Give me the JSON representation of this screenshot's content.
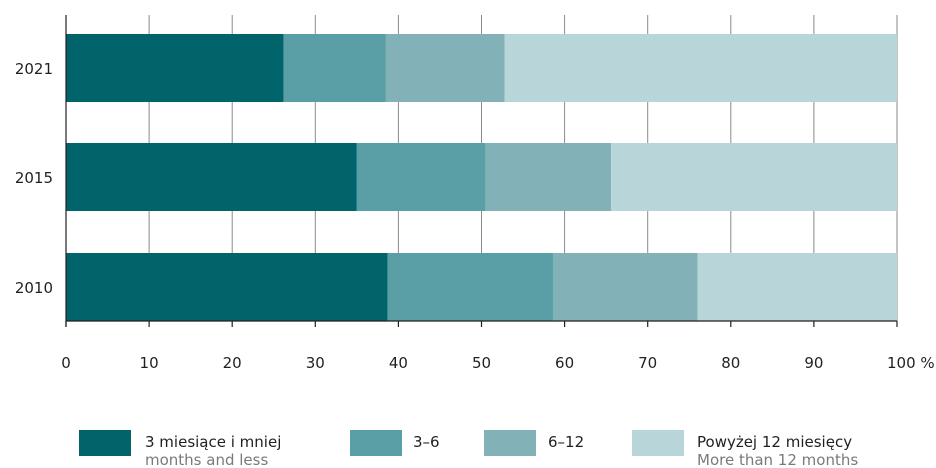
{
  "chart_data": {
    "type": "bar",
    "orientation": "horizontal",
    "stacked": true,
    "categories": [
      "2021",
      "2015",
      "2010"
    ],
    "series": [
      {
        "name": "3 miesiące i mniej",
        "name_en": "months and less",
        "color": "#02646b",
        "values": [
          26.2,
          35.0,
          38.7
        ]
      },
      {
        "name": "3–6",
        "color": "#5a9fa5",
        "values": [
          12.3,
          15.5,
          19.9
        ]
      },
      {
        "name": "6–12",
        "color": "#82b2b8",
        "values": [
          14.3,
          15.1,
          17.4
        ]
      },
      {
        "name": "Powyżej 12 miesięcy",
        "name_en": "More than 12 months",
        "color": "#b8d6d9",
        "values": [
          47.2,
          34.4,
          24.0
        ]
      }
    ],
    "xlim": [
      0,
      100
    ],
    "xticks": [
      "0",
      "10",
      "20",
      "30",
      "40",
      "50",
      "60",
      "70",
      "80",
      "90",
      "100 %"
    ],
    "grid": true,
    "legend_position": "bottom"
  }
}
